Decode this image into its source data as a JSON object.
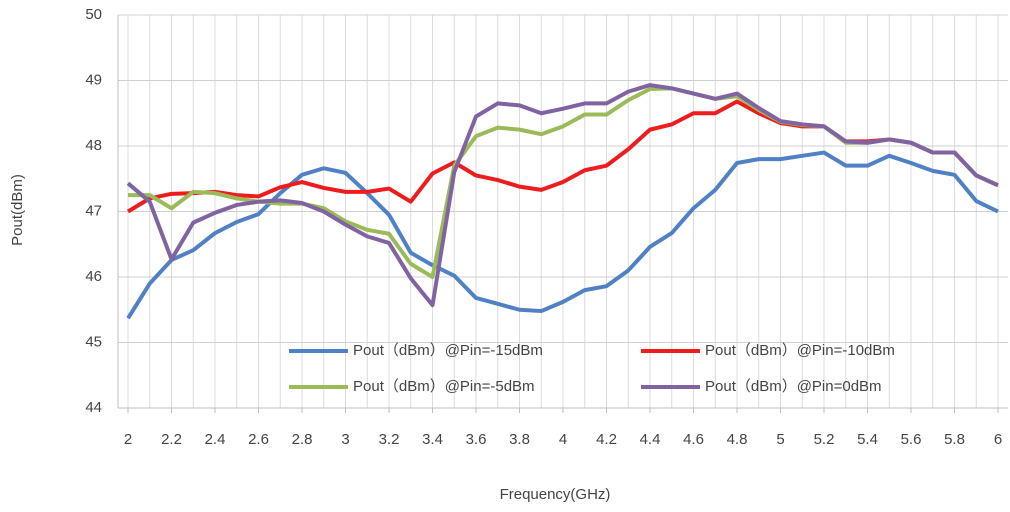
{
  "chart_data": {
    "type": "line",
    "x_label": "Frequency(GHz)",
    "y_label": "Pout(dBm)",
    "x": [
      2,
      2.1,
      2.2,
      2.3,
      2.4,
      2.5,
      2.6,
      2.7,
      2.8,
      2.9,
      3,
      3.1,
      3.2,
      3.3,
      3.4,
      3.5,
      3.6,
      3.7,
      3.8,
      3.9,
      4,
      4.1,
      4.2,
      4.3,
      4.4,
      4.5,
      4.6,
      4.7,
      4.8,
      4.9,
      5,
      5.1,
      5.2,
      5.3,
      5.4,
      5.5,
      5.6,
      5.7,
      5.8,
      5.9,
      6
    ],
    "xlim": [
      2,
      6
    ],
    "xticks": [
      2,
      2.2,
      2.4,
      2.6,
      2.8,
      3,
      3.2,
      3.4,
      3.6,
      3.8,
      4,
      4.2,
      4.4,
      4.6,
      4.8,
      5,
      5.2,
      5.4,
      5.6,
      5.8,
      6
    ],
    "ylim": [
      44,
      50
    ],
    "yticks": [
      44,
      45,
      46,
      47,
      48,
      49,
      50
    ],
    "grid": true,
    "legend": "lower right",
    "series": [
      {
        "name": "Pout（dBm）@Pin=-15dBm",
        "color": "#4f81c4",
        "values": [
          45.37,
          45.9,
          46.26,
          46.41,
          46.67,
          46.84,
          46.96,
          47.28,
          47.56,
          47.66,
          47.59,
          47.28,
          46.95,
          46.37,
          46.18,
          46.02,
          45.68,
          45.59,
          45.5,
          45.48,
          45.62,
          45.8,
          45.86,
          46.1,
          46.46,
          46.67,
          47.05,
          47.33,
          47.74,
          47.8,
          47.8,
          47.85,
          47.9,
          47.7,
          47.7,
          47.85,
          47.74,
          47.62,
          47.56,
          47.16,
          47.0
        ]
      },
      {
        "name": "Pout（dBm）@Pin=-10dBm",
        "color": "#ee1c1c",
        "values": [
          47.0,
          47.2,
          47.27,
          47.28,
          47.3,
          47.25,
          47.23,
          47.37,
          47.45,
          47.36,
          47.3,
          47.3,
          47.35,
          47.15,
          47.58,
          47.75,
          47.55,
          47.48,
          47.38,
          47.33,
          47.45,
          47.63,
          47.7,
          47.95,
          48.25,
          48.33,
          48.5,
          48.5,
          48.68,
          48.5,
          48.35,
          48.3,
          48.3,
          48.07,
          48.07,
          48.1,
          48.05,
          47.9,
          47.9,
          47.55,
          47.4
        ]
      },
      {
        "name": "Pout（dBm）@Pin=-5dBm",
        "color": "#9bbb59",
        "values": [
          47.25,
          47.25,
          47.05,
          47.3,
          47.28,
          47.2,
          47.15,
          47.12,
          47.12,
          47.05,
          46.85,
          46.72,
          46.66,
          46.2,
          46.0,
          47.7,
          48.15,
          48.28,
          48.25,
          48.18,
          48.3,
          48.48,
          48.48,
          48.7,
          48.87,
          48.88,
          48.8,
          48.72,
          48.76,
          48.55,
          48.37,
          48.32,
          48.3,
          48.05,
          48.05,
          48.1,
          48.05,
          47.9,
          47.9,
          47.55,
          47.4
        ]
      },
      {
        "name": "Pout（dBm）@Pin=0dBm",
        "color": "#8064a2",
        "values": [
          47.43,
          47.15,
          46.27,
          46.83,
          46.98,
          47.1,
          47.15,
          47.17,
          47.13,
          47.0,
          46.8,
          46.62,
          46.52,
          45.98,
          45.57,
          47.6,
          48.45,
          48.65,
          48.62,
          48.5,
          48.57,
          48.65,
          48.65,
          48.83,
          48.93,
          48.88,
          48.8,
          48.72,
          48.8,
          48.58,
          48.38,
          48.33,
          48.3,
          48.07,
          48.05,
          48.1,
          48.05,
          47.9,
          47.9,
          47.55,
          47.4
        ]
      }
    ]
  }
}
